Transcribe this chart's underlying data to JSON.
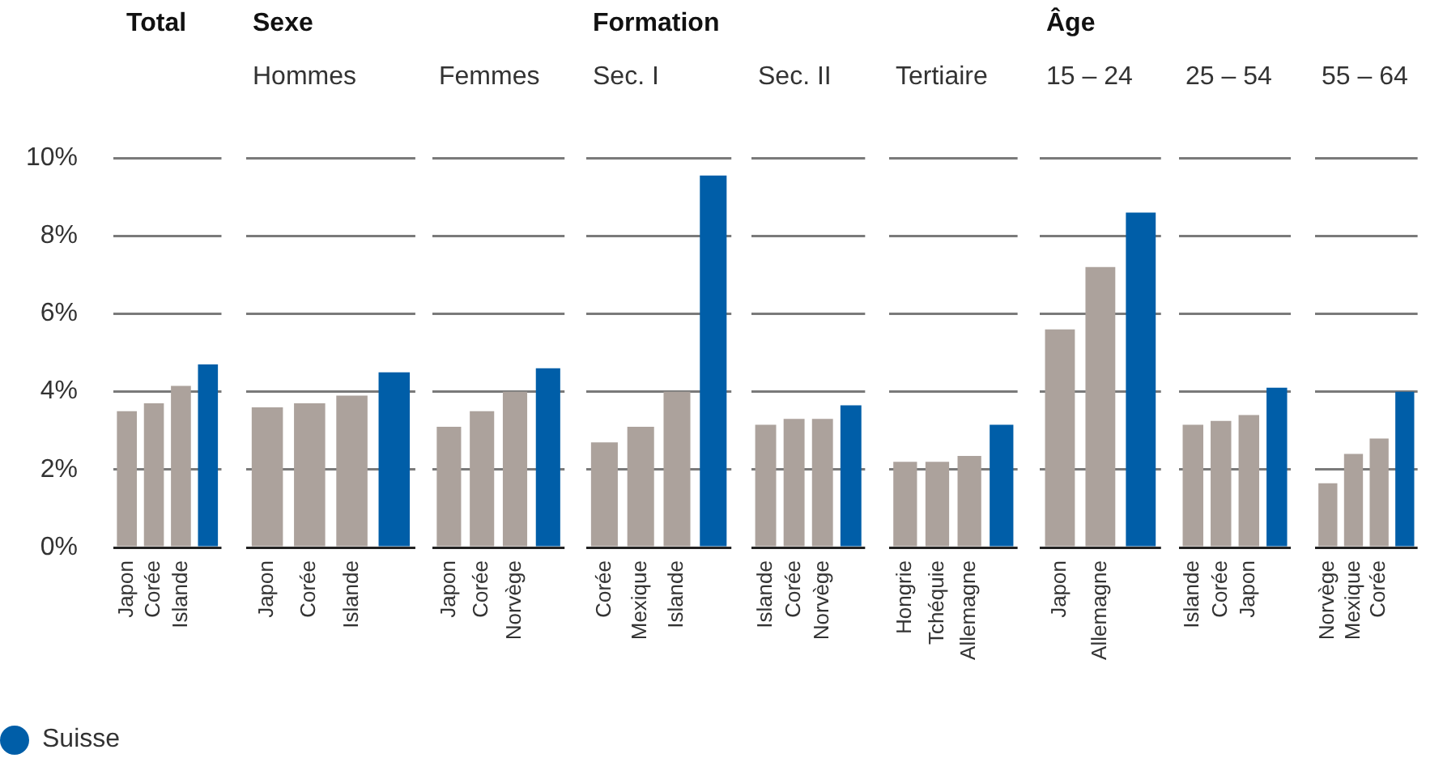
{
  "chart_data": [
    {
      "type": "bar",
      "title": "Total",
      "categories": [
        "Japon",
        "Corée",
        "Islande",
        null
      ],
      "stacked": true,
      "ylim": [
        0,
        10
      ],
      "yticks": [
        {
          "value": 0,
          "label": "0%"
        },
        {
          "value": 2,
          "label": "2%"
        },
        {
          "value": 4,
          "label": "4%"
        },
        {
          "value": 6,
          "label": "6%"
        },
        {
          "value": 8,
          "label": "8%"
        },
        {
          "value": 10,
          "label": "10%"
        }
      ],
      "grid": "y",
      "legend": "bottom left",
      "series": [
        {
          "color": "#aca29c",
          "values": [
            3.5,
            3.7,
            4.15,
            null
          ]
        },
        {
          "name": "Suisse",
          "color": "#005ea8",
          "values": [
            null,
            null,
            null,
            4.7
          ]
        }
      ]
    },
    {
      "type": "bar",
      "title": "Sexe",
      "subtitle": "Hommes",
      "categories": [
        "Japon",
        "Corée",
        "Islande",
        null
      ],
      "stacked": true,
      "ylim": [
        0,
        10
      ],
      "yticks": [
        0,
        2,
        4,
        6,
        8,
        10
      ],
      "grid": "y",
      "tick_labels": "x",
      "series": [
        {
          "color": "#aca29c",
          "values": [
            3.6,
            3.7,
            3.9,
            null
          ]
        },
        {
          "color": "#005ea8",
          "values": [
            null,
            null,
            null,
            4.5
          ]
        }
      ]
    },
    {
      "type": "bar",
      "subtitle": "Femmes",
      "categories": [
        "Japon",
        "Corée",
        "Norvège",
        null
      ],
      "stacked": true,
      "ylim": [
        0,
        10
      ],
      "yticks": [
        0,
        2,
        4,
        6,
        8,
        10
      ],
      "grid": "y",
      "tick_labels": "x",
      "series": [
        {
          "color": "#aca29c",
          "values": [
            3.1,
            3.5,
            4.0,
            null
          ]
        },
        {
          "color": "#005ea8",
          "values": [
            null,
            null,
            null,
            4.6
          ]
        }
      ]
    },
    {
      "type": "bar",
      "title": "Formation",
      "subtitle": "Sec. I",
      "categories": [
        "Corée",
        "Mexique",
        "Islande",
        null
      ],
      "stacked": true,
      "ylim": [
        0,
        10
      ],
      "yticks": [
        0,
        2,
        4,
        6,
        8,
        10
      ],
      "grid": "y",
      "tick_labels": "x",
      "series": [
        {
          "color": "#aca29c",
          "values": [
            2.7,
            3.1,
            4.0,
            null
          ]
        },
        {
          "color": "#005ea8",
          "values": [
            null,
            null,
            null,
            9.55
          ]
        }
      ]
    },
    {
      "type": "bar",
      "subtitle": "Sec. II",
      "categories": [
        "Islande",
        "Corée",
        "Norvège",
        null
      ],
      "stacked": true,
      "ylim": [
        0,
        10
      ],
      "yticks": [
        0,
        2,
        4,
        6,
        8,
        10
      ],
      "grid": "y",
      "tick_labels": "x",
      "series": [
        {
          "color": "#aca29c",
          "values": [
            3.15,
            3.3,
            3.3,
            null
          ]
        },
        {
          "color": "#005ea8",
          "values": [
            null,
            null,
            null,
            3.65
          ]
        }
      ]
    },
    {
      "type": "bar",
      "subtitle": "Tertiaire",
      "categories": [
        "Hongrie",
        "Tchéquie",
        "Allemagne",
        null
      ],
      "stacked": true,
      "ylim": [
        0,
        10
      ],
      "yticks": [
        0,
        2,
        4,
        6,
        8,
        10
      ],
      "grid": "y",
      "tick_labels": "x",
      "series": [
        {
          "color": "#aca29c",
          "values": [
            2.2,
            2.2,
            2.35,
            null
          ]
        },
        {
          "color": "#005ea8",
          "values": [
            null,
            null,
            null,
            3.15
          ]
        }
      ]
    },
    {
      "type": "bar",
      "title": "Âge",
      "subtitle": "15 – 24",
      "categories": [
        "Japon",
        "Allemagne",
        null
      ],
      "stacked": true,
      "ylim": [
        0,
        10
      ],
      "yticks": [
        0,
        2,
        4,
        6,
        8,
        10
      ],
      "grid": "y",
      "tick_labels": "x",
      "series": [
        {
          "color": "#aca29c",
          "values": [
            5.6,
            7.2,
            null
          ]
        },
        {
          "color": "#005ea8",
          "values": [
            null,
            null,
            8.6
          ]
        }
      ]
    },
    {
      "type": "bar",
      "subtitle": "25 – 54",
      "categories": [
        "Islande",
        "Corée",
        "Japon",
        null
      ],
      "stacked": true,
      "ylim": [
        0,
        10
      ],
      "yticks": [
        0,
        2,
        4,
        6,
        8,
        10
      ],
      "grid": "y",
      "tick_labels": "x",
      "series": [
        {
          "color": "#aca29c",
          "values": [
            3.15,
            3.25,
            3.4,
            null
          ]
        },
        {
          "color": "#005ea8",
          "values": [
            null,
            null,
            null,
            4.1
          ]
        }
      ]
    },
    {
      "type": "bar",
      "subtitle": "55 – 64",
      "categories": [
        "Norvège",
        "Mexique",
        "Corée",
        null
      ],
      "stacked": true,
      "ylim": [
        0,
        10
      ],
      "yticks": [
        0,
        2,
        4,
        6,
        8,
        10
      ],
      "grid": "y",
      "tick_labels": "x",
      "series": [
        {
          "color": "#aca29c",
          "values": [
            1.65,
            2.4,
            2.8,
            null
          ]
        },
        {
          "color": "#005ea8",
          "values": [
            null,
            null,
            null,
            4.0
          ]
        }
      ]
    }
  ]
}
